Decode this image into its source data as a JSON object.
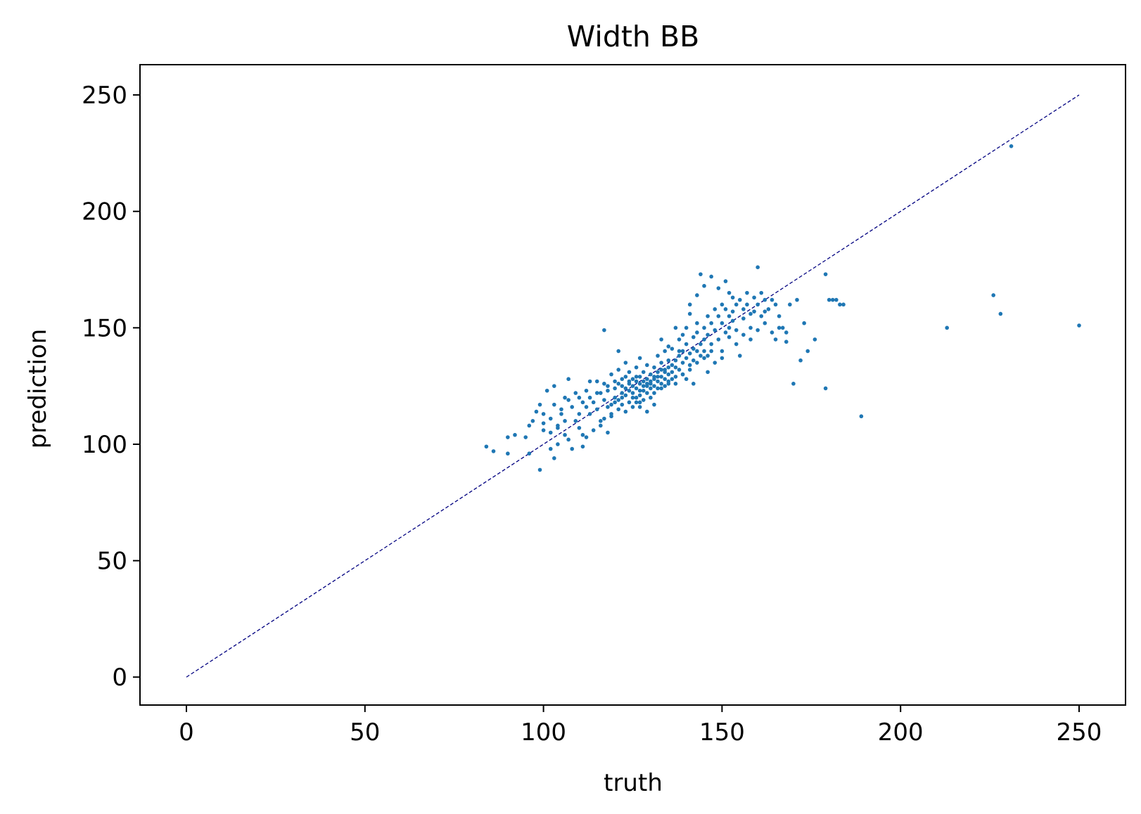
{
  "chart_data": {
    "type": "scatter",
    "title": "Width BB",
    "xlabel": "truth",
    "ylabel": "prediction",
    "xlim": [
      -13,
      263
    ],
    "ylim": [
      -12,
      263
    ],
    "xticks": [
      0,
      50,
      100,
      150,
      200,
      250
    ],
    "yticks": [
      0,
      50,
      100,
      150,
      200,
      250
    ],
    "grid": false,
    "marker_color": "#1f77b4",
    "reference_line": {
      "x": [
        0,
        250
      ],
      "y": [
        0,
        250
      ],
      "color": "#000080",
      "style": "dashed"
    },
    "series": [
      {
        "points": [
          [
            84,
            99
          ],
          [
            86,
            97
          ],
          [
            90,
            103
          ],
          [
            90,
            96
          ],
          [
            92,
            104
          ],
          [
            95,
            103
          ],
          [
            96,
            108
          ],
          [
            97,
            110
          ],
          [
            96,
            96
          ],
          [
            99,
            117
          ],
          [
            99,
            89
          ],
          [
            100,
            113
          ],
          [
            100,
            106
          ],
          [
            101,
            123
          ],
          [
            102,
            111
          ],
          [
            102,
            98
          ],
          [
            103,
            125
          ],
          [
            103,
            94
          ],
          [
            103,
            117
          ],
          [
            104,
            100
          ],
          [
            104,
            107
          ],
          [
            105,
            113
          ],
          [
            106,
            104
          ],
          [
            106,
            120
          ],
          [
            107,
            128
          ],
          [
            107,
            102
          ],
          [
            108,
            116
          ],
          [
            108,
            98
          ],
          [
            109,
            110
          ],
          [
            110,
            107
          ],
          [
            110,
            113
          ],
          [
            110,
            120
          ],
          [
            111,
            99
          ],
          [
            111,
            104
          ],
          [
            112,
            116
          ],
          [
            112,
            123
          ],
          [
            113,
            127
          ],
          [
            113,
            113
          ],
          [
            114,
            118
          ],
          [
            115,
            127
          ],
          [
            115,
            115
          ],
          [
            116,
            110
          ],
          [
            116,
            122
          ],
          [
            117,
            119
          ],
          [
            117,
            126
          ],
          [
            117,
            111
          ],
          [
            118,
            105
          ],
          [
            118,
            116
          ],
          [
            118,
            123
          ],
          [
            119,
            130
          ],
          [
            119,
            117
          ],
          [
            119,
            113
          ],
          [
            120,
            124
          ],
          [
            120,
            120
          ],
          [
            120,
            127
          ],
          [
            121,
            115
          ],
          [
            121,
            132
          ],
          [
            121,
            119
          ],
          [
            122,
            117
          ],
          [
            122,
            122
          ],
          [
            122,
            128
          ],
          [
            122,
            125
          ],
          [
            123,
            121
          ],
          [
            123,
            114
          ],
          [
            123,
            129
          ],
          [
            123,
            135
          ],
          [
            124,
            123
          ],
          [
            124,
            118
          ],
          [
            124,
            126
          ],
          [
            124,
            131
          ],
          [
            125,
            122
          ],
          [
            125,
            116
          ],
          [
            125,
            125
          ],
          [
            125,
            128
          ],
          [
            126,
            120
          ],
          [
            126,
            127
          ],
          [
            126,
            124
          ],
          [
            126,
            133
          ],
          [
            127,
            121
          ],
          [
            127,
            118
          ],
          [
            127,
            126
          ],
          [
            127,
            129
          ],
          [
            127,
            137
          ],
          [
            128,
            123
          ],
          [
            128,
            125
          ],
          [
            128,
            131
          ],
          [
            128,
            119
          ],
          [
            129,
            126
          ],
          [
            129,
            122
          ],
          [
            129,
            128
          ],
          [
            129,
            134
          ],
          [
            130,
            124
          ],
          [
            130,
            127
          ],
          [
            130,
            130
          ],
          [
            130,
            120
          ],
          [
            131,
            125
          ],
          [
            131,
            129
          ],
          [
            131,
            133
          ],
          [
            131,
            122
          ],
          [
            132,
            127
          ],
          [
            132,
            131
          ],
          [
            132,
            124
          ],
          [
            132,
            138
          ],
          [
            133,
            129
          ],
          [
            133,
            126
          ],
          [
            133,
            132
          ],
          [
            133,
            135
          ],
          [
            134,
            128
          ],
          [
            134,
            131
          ],
          [
            134,
            125
          ],
          [
            134,
            140
          ],
          [
            135,
            133
          ],
          [
            135,
            130
          ],
          [
            135,
            127
          ],
          [
            135,
            136
          ],
          [
            136,
            131
          ],
          [
            136,
            134
          ],
          [
            136,
            141
          ],
          [
            137,
            129
          ],
          [
            137,
            136
          ],
          [
            137,
            133
          ],
          [
            138,
            138
          ],
          [
            138,
            132
          ],
          [
            138,
            145
          ],
          [
            139,
            135
          ],
          [
            139,
            140
          ],
          [
            139,
            130
          ],
          [
            140,
            137
          ],
          [
            140,
            143
          ],
          [
            140,
            150
          ],
          [
            141,
            134
          ],
          [
            141,
            139
          ],
          [
            141,
            156
          ],
          [
            142,
            141
          ],
          [
            142,
            146
          ],
          [
            142,
            136
          ],
          [
            143,
            140
          ],
          [
            143,
            152
          ],
          [
            143,
            148
          ],
          [
            144,
            138
          ],
          [
            144,
            143
          ],
          [
            144,
            173
          ],
          [
            145,
            145
          ],
          [
            145,
            150
          ],
          [
            145,
            140
          ],
          [
            146,
            147
          ],
          [
            146,
            155
          ],
          [
            146,
            138
          ],
          [
            147,
            143
          ],
          [
            147,
            152
          ],
          [
            148,
            149
          ],
          [
            148,
            158
          ],
          [
            149,
            145
          ],
          [
            149,
            155
          ],
          [
            150,
            152
          ],
          [
            150,
            137
          ],
          [
            150,
            160
          ],
          [
            151,
            148
          ],
          [
            151,
            158
          ],
          [
            152,
            155
          ],
          [
            152,
            150
          ],
          [
            152,
            165
          ],
          [
            153,
            157
          ],
          [
            153,
            153
          ],
          [
            154,
            160
          ],
          [
            154,
            149
          ],
          [
            155,
            162
          ],
          [
            155,
            138
          ],
          [
            156,
            158
          ],
          [
            156,
            154
          ],
          [
            157,
            165
          ],
          [
            157,
            160
          ],
          [
            158,
            156
          ],
          [
            158,
            150
          ],
          [
            159,
            163
          ],
          [
            159,
            157
          ],
          [
            160,
            176
          ],
          [
            160,
            160
          ],
          [
            161,
            155
          ],
          [
            161,
            165
          ],
          [
            162,
            162
          ],
          [
            162,
            152
          ],
          [
            163,
            158
          ],
          [
            164,
            148
          ],
          [
            165,
            145
          ],
          [
            165,
            160
          ],
          [
            166,
            155
          ],
          [
            167,
            150
          ],
          [
            168,
            144
          ],
          [
            169,
            160
          ],
          [
            170,
            126
          ],
          [
            171,
            162
          ],
          [
            172,
            136
          ],
          [
            173,
            152
          ],
          [
            174,
            140
          ],
          [
            176,
            145
          ],
          [
            179,
            173
          ],
          [
            179,
            124
          ],
          [
            180,
            162
          ],
          [
            181,
            162
          ],
          [
            182,
            162
          ],
          [
            183,
            160
          ],
          [
            184,
            160
          ],
          [
            189,
            112
          ],
          [
            213,
            150
          ],
          [
            226,
            164
          ],
          [
            228,
            156
          ],
          [
            231,
            228
          ],
          [
            250,
            151
          ],
          [
            115,
            122
          ],
          [
            118,
            125
          ],
          [
            121,
            126
          ],
          [
            124,
            127
          ],
          [
            126,
            129
          ],
          [
            128,
            127
          ],
          [
            130,
            126
          ],
          [
            132,
            129
          ],
          [
            134,
            132
          ],
          [
            136,
            128
          ],
          [
            123,
            124
          ],
          [
            125,
            120
          ],
          [
            127,
            123
          ],
          [
            129,
            125
          ],
          [
            131,
            128
          ],
          [
            122,
            120
          ],
          [
            120,
            118
          ],
          [
            126,
            118
          ],
          [
            133,
            124
          ],
          [
            135,
            126
          ],
          [
            113,
            120
          ],
          [
            111,
            118
          ],
          [
            109,
            122
          ],
          [
            107,
            119
          ],
          [
            105,
            115
          ],
          [
            137,
            126
          ],
          [
            139,
            130
          ],
          [
            141,
            132
          ],
          [
            143,
            135
          ],
          [
            145,
            137
          ],
          [
            147,
            140
          ],
          [
            119,
            112
          ],
          [
            116,
            108
          ],
          [
            114,
            106
          ],
          [
            112,
            103
          ],
          [
            106,
            110
          ],
          [
            104,
            108
          ],
          [
            102,
            105
          ],
          [
            100,
            109
          ],
          [
            98,
            114
          ],
          [
            127,
            116
          ],
          [
            129,
            114
          ],
          [
            131,
            117
          ],
          [
            138,
            140
          ],
          [
            140,
            128
          ],
          [
            142,
            126
          ],
          [
            146,
            131
          ],
          [
            148,
            135
          ],
          [
            150,
            140
          ],
          [
            152,
            146
          ],
          [
            154,
            143
          ],
          [
            156,
            147
          ],
          [
            158,
            145
          ],
          [
            160,
            149
          ],
          [
            162,
            157
          ],
          [
            164,
            162
          ],
          [
            166,
            150
          ],
          [
            168,
            148
          ],
          [
            121,
            140
          ],
          [
            117,
            149
          ],
          [
            135,
            142
          ],
          [
            133,
            145
          ],
          [
            137,
            150
          ],
          [
            139,
            147
          ],
          [
            141,
            160
          ],
          [
            143,
            164
          ],
          [
            145,
            168
          ],
          [
            147,
            172
          ],
          [
            149,
            167
          ],
          [
            151,
            170
          ],
          [
            153,
            163
          ]
        ]
      }
    ]
  }
}
